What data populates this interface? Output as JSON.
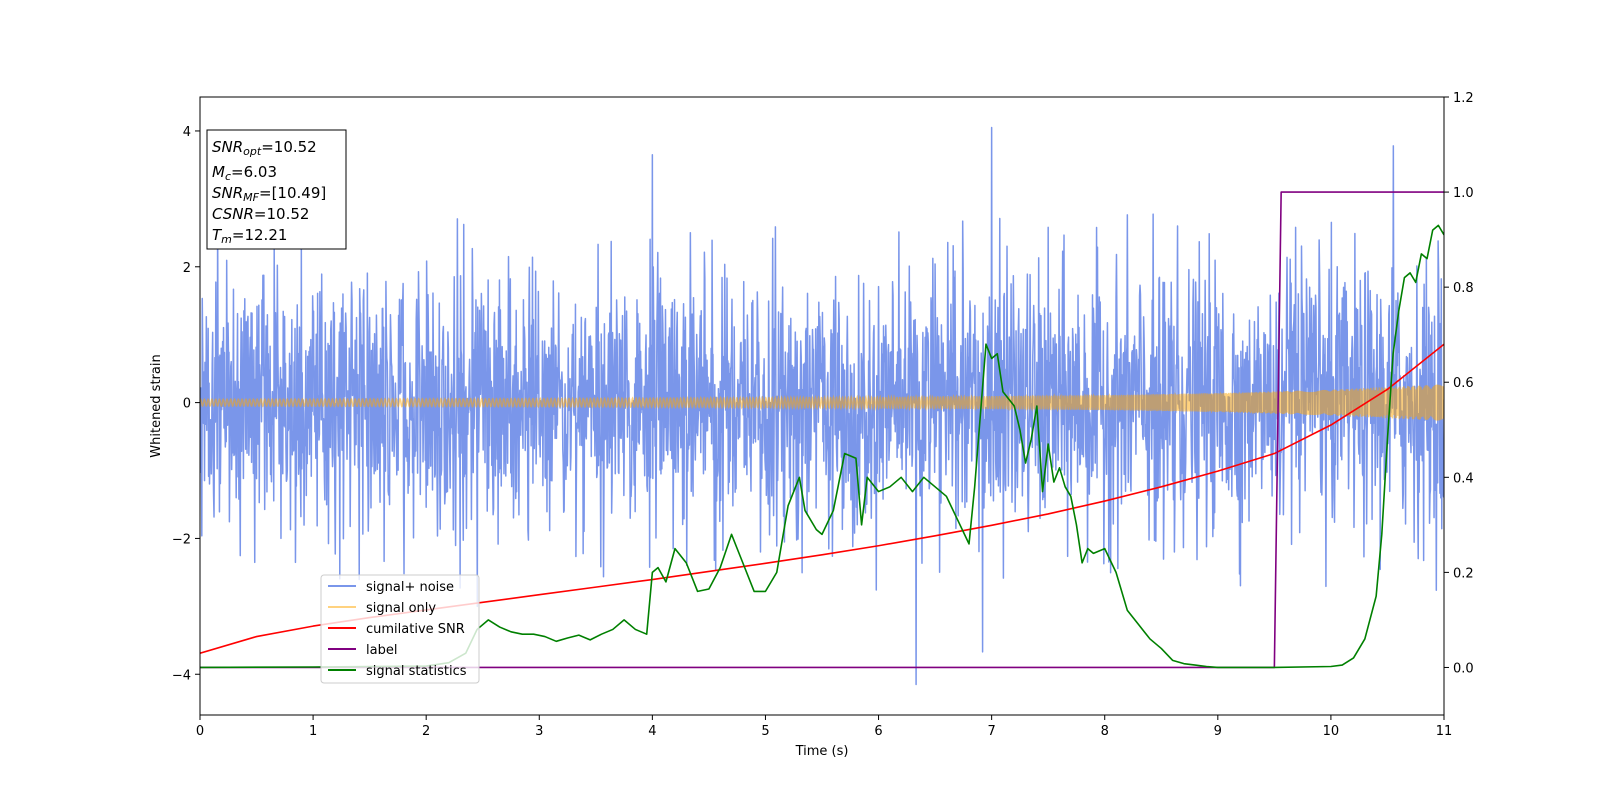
{
  "chart_data": {
    "type": "line",
    "title": "",
    "xlabel": "Time (s)",
    "ylabel": "Whitened strain",
    "xlim": [
      0,
      11
    ],
    "ylim": [
      -4.6,
      4.5
    ],
    "y2lim": [
      -0.1,
      1.2
    ],
    "xticks": [
      0,
      1,
      2,
      3,
      4,
      5,
      6,
      7,
      8,
      9,
      10,
      11
    ],
    "yticks": [
      -4,
      -2,
      0,
      2,
      4
    ],
    "yticks_labels": [
      "−4",
      "−2",
      "0",
      "2",
      "4"
    ],
    "y2ticks": [
      0.0,
      0.2,
      0.4,
      0.6,
      0.8,
      1.0,
      1.2
    ],
    "y2ticks_labels": [
      "0.0",
      "0.2",
      "0.4",
      "0.6",
      "0.8",
      "1.0",
      "1.2"
    ],
    "grid": false,
    "legend_location": "lower-left",
    "info_box": {
      "lines": [
        {
          "var": "SNR",
          "sub": "opt",
          "value": "=10.52"
        },
        {
          "var": "M",
          "sub": "c",
          "value": "=6.03"
        },
        {
          "var": "SNR",
          "sub": "MF",
          "value": "=[10.49]"
        },
        {
          "var": "CSNR",
          "sub": "",
          "value": "=10.52"
        },
        {
          "var": "T",
          "sub": "m",
          "value": "=12.21"
        }
      ]
    },
    "series": [
      {
        "name": "signal+ noise",
        "axis": "left",
        "color": "#4169E1",
        "alpha": 0.7,
        "kind": "noise",
        "amplitude_envelope": 2.8,
        "sample_rate_hz": 250,
        "extreme_points": [
          [
            6.33,
            -4.15
          ],
          [
            7.0,
            4.05
          ],
          [
            10.55,
            3.78
          ],
          [
            4.0,
            3.65
          ],
          [
            6.92,
            -3.67
          ],
          [
            2.45,
            -3.0
          ]
        ]
      },
      {
        "name": "signal only",
        "axis": "left",
        "color": "#FFA500",
        "alpha": 0.5,
        "kind": "chirp",
        "envelope": [
          [
            0,
            0.05
          ],
          [
            3,
            0.06
          ],
          [
            6,
            0.08
          ],
          [
            8,
            0.11
          ],
          [
            9,
            0.14
          ],
          [
            10,
            0.19
          ],
          [
            11,
            0.27
          ]
        ]
      },
      {
        "name": "cumilative SNR",
        "axis": "right",
        "color": "#FF0000",
        "x": [
          0,
          0.5,
          1,
          1.5,
          2,
          2.5,
          3,
          3.5,
          4,
          4.5,
          5,
          5.5,
          6,
          6.5,
          7,
          7.5,
          8,
          8.5,
          9,
          9.5,
          10,
          10.5,
          11
        ],
        "y": [
          0.03,
          0.065,
          0.087,
          0.105,
          0.121,
          0.137,
          0.153,
          0.169,
          0.185,
          0.202,
          0.219,
          0.237,
          0.256,
          0.277,
          0.299,
          0.323,
          0.35,
          0.38,
          0.413,
          0.45,
          0.51,
          0.585,
          0.68
        ]
      },
      {
        "name": "label",
        "axis": "right",
        "color": "#800080",
        "x": [
          0,
          9.5,
          9.56,
          11
        ],
        "y": [
          0.0,
          0.0,
          1.0,
          1.0
        ]
      },
      {
        "name": "signal statistics",
        "axis": "right",
        "color": "#008000",
        "x": [
          0,
          1,
          2,
          2.2,
          2.35,
          2.45,
          2.55,
          2.65,
          2.75,
          2.85,
          2.95,
          3.05,
          3.15,
          3.25,
          3.35,
          3.45,
          3.55,
          3.65,
          3.75,
          3.85,
          3.95,
          4.0,
          4.05,
          4.12,
          4.2,
          4.3,
          4.4,
          4.5,
          4.6,
          4.7,
          4.75,
          4.8,
          4.9,
          5.0,
          5.1,
          5.2,
          5.3,
          5.35,
          5.45,
          5.5,
          5.6,
          5.7,
          5.8,
          5.85,
          5.9,
          6.0,
          6.1,
          6.2,
          6.3,
          6.4,
          6.5,
          6.6,
          6.7,
          6.8,
          6.85,
          6.95,
          7.0,
          7.05,
          7.1,
          7.2,
          7.25,
          7.3,
          7.35,
          7.4,
          7.45,
          7.5,
          7.55,
          7.6,
          7.65,
          7.7,
          7.75,
          7.8,
          7.85,
          7.9,
          8.0,
          8.1,
          8.2,
          8.3,
          8.4,
          8.5,
          8.6,
          8.7,
          8.8,
          8.9,
          9.0,
          9.5,
          10.0,
          10.1,
          10.2,
          10.3,
          10.4,
          10.45,
          10.5,
          10.55,
          10.6,
          10.65,
          10.7,
          10.75,
          10.8,
          10.85,
          10.9,
          10.95,
          11.0
        ],
        "y": [
          0.0,
          0.001,
          0.003,
          0.01,
          0.03,
          0.08,
          0.1,
          0.085,
          0.075,
          0.07,
          0.07,
          0.065,
          0.055,
          0.062,
          0.068,
          0.058,
          0.07,
          0.08,
          0.1,
          0.08,
          0.07,
          0.2,
          0.21,
          0.18,
          0.25,
          0.22,
          0.16,
          0.165,
          0.21,
          0.28,
          0.25,
          0.22,
          0.16,
          0.16,
          0.2,
          0.34,
          0.4,
          0.33,
          0.29,
          0.28,
          0.33,
          0.45,
          0.44,
          0.3,
          0.4,
          0.37,
          0.38,
          0.4,
          0.37,
          0.4,
          0.38,
          0.36,
          0.31,
          0.26,
          0.38,
          0.68,
          0.65,
          0.66,
          0.58,
          0.55,
          0.5,
          0.43,
          0.48,
          0.55,
          0.37,
          0.47,
          0.39,
          0.42,
          0.38,
          0.36,
          0.3,
          0.22,
          0.25,
          0.24,
          0.25,
          0.2,
          0.12,
          0.09,
          0.06,
          0.04,
          0.015,
          0.008,
          0.005,
          0.002,
          0.0,
          0.0,
          0.002,
          0.005,
          0.02,
          0.06,
          0.15,
          0.28,
          0.48,
          0.66,
          0.75,
          0.82,
          0.83,
          0.81,
          0.87,
          0.86,
          0.92,
          0.93,
          0.91
        ]
      }
    ]
  }
}
